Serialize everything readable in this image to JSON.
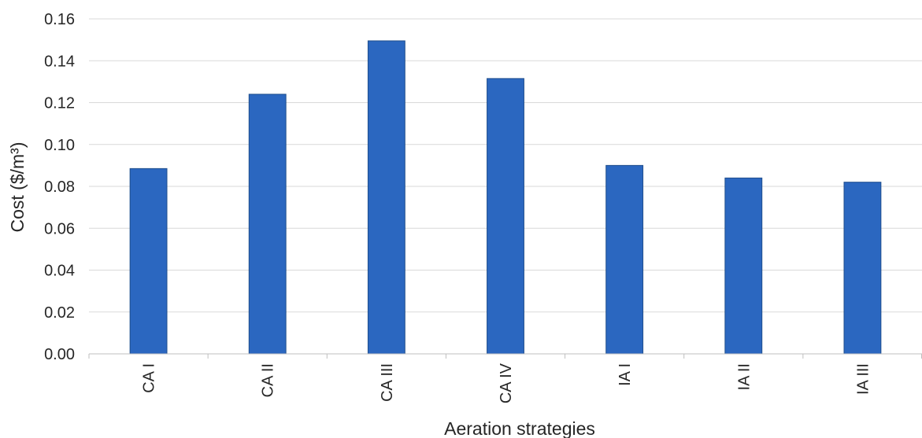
{
  "chart_data": {
    "type": "bar",
    "title": "",
    "xlabel": "Aeration strategies",
    "ylabel": "Cost ($/m³)",
    "categories": [
      "CA I",
      "CA II",
      "CA III",
      "CA IV",
      "IA I",
      "IA II",
      "IA III"
    ],
    "values": [
      0.0885,
      0.124,
      0.1495,
      0.1315,
      0.09,
      0.084,
      0.082
    ],
    "ylim": [
      0,
      0.16
    ],
    "yticks": [
      "0.00",
      "0.02",
      "0.04",
      "0.06",
      "0.08",
      "0.10",
      "0.12",
      "0.14",
      "0.16"
    ],
    "grid": true,
    "legend": "none",
    "colors": {
      "bar": "#2b67c0",
      "bar_edge": "#1f4e8c",
      "grid": "#d9d9d9",
      "text": "#262626"
    }
  }
}
